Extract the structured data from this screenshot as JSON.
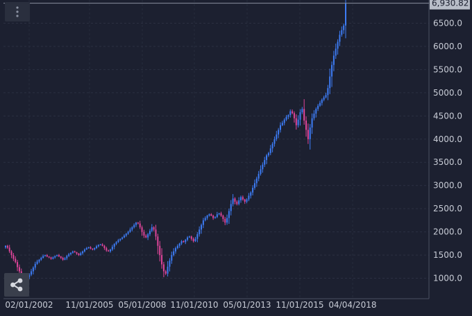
{
  "chart_data": {
    "type": "candlestick",
    "title": "",
    "xlabel": "",
    "ylabel": "",
    "ylim": [
      560,
      7000
    ],
    "grid": true,
    "up_color": "#3d7cf5",
    "down_color": "#e0459a",
    "background": "#1c2030",
    "last_value_label": "6,930.82",
    "last_value": 6930.82,
    "x_tick_labels": [
      "02/01/2002",
      "11/01/2005",
      "05/01/2008",
      "11/01/2010",
      "05/01/2013",
      "11/01/2015",
      "04/04/2018"
    ],
    "y_tick_labels": [
      "1000.0",
      "1500.0",
      "2000.0",
      "2500.0",
      "3000.0",
      "3500.0",
      "4000.0",
      "4500.0",
      "5000.0",
      "5500.0",
      "6000.0",
      "6500.0"
    ],
    "y_tick_values": [
      1000,
      1500,
      2000,
      2500,
      3000,
      3500,
      4000,
      4500,
      5000,
      5500,
      6000,
      6500
    ],
    "series_close": [
      1700,
      1660,
      1580,
      1500,
      1420,
      1350,
      1240,
      1150,
      1080,
      1030,
      1000,
      1020,
      1080,
      1150,
      1230,
      1310,
      1360,
      1400,
      1440,
      1480,
      1500,
      1470,
      1450,
      1420,
      1450,
      1480,
      1500,
      1470,
      1440,
      1400,
      1430,
      1480,
      1520,
      1550,
      1580,
      1560,
      1530,
      1500,
      1540,
      1580,
      1620,
      1650,
      1670,
      1640,
      1620,
      1650,
      1690,
      1720,
      1730,
      1700,
      1650,
      1600,
      1580,
      1620,
      1680,
      1740,
      1780,
      1820,
      1850,
      1880,
      1920,
      1960,
      2000,
      2050,
      2100,
      2150,
      2200,
      2180,
      2100,
      2000,
      1920,
      1880,
      1950,
      2020,
      2100,
      2050,
      1900,
      1700,
      1500,
      1300,
      1150,
      1100,
      1250,
      1380,
      1500,
      1580,
      1650,
      1700,
      1750,
      1800,
      1780,
      1830,
      1880,
      1900,
      1850,
      1800,
      1850,
      1950,
      2050,
      2150,
      2250,
      2300,
      2350,
      2380,
      2350,
      2300,
      2320,
      2380,
      2400,
      2350,
      2280,
      2200,
      2300,
      2450,
      2600,
      2720,
      2650,
      2600,
      2680,
      2750,
      2700,
      2650,
      2700,
      2780,
      2850,
      2950,
      3050,
      3150,
      3250,
      3350,
      3450,
      3550,
      3650,
      3700,
      3800,
      3900,
      4000,
      4100,
      4200,
      4300,
      4350,
      4420,
      4480,
      4520,
      4600,
      4560,
      4450,
      4300,
      4420,
      4580,
      4650,
      4400,
      4200,
      4000,
      4250,
      4450,
      4550,
      4650,
      4720,
      4780,
      4850,
      4900,
      4950,
      5100,
      5350,
      5600,
      5800,
      5950,
      6100,
      6250,
      6350,
      6450,
      6930.82
    ]
  },
  "ui": {
    "menu_icon": "more-vertical-icon",
    "share_icon": "share-icon"
  }
}
